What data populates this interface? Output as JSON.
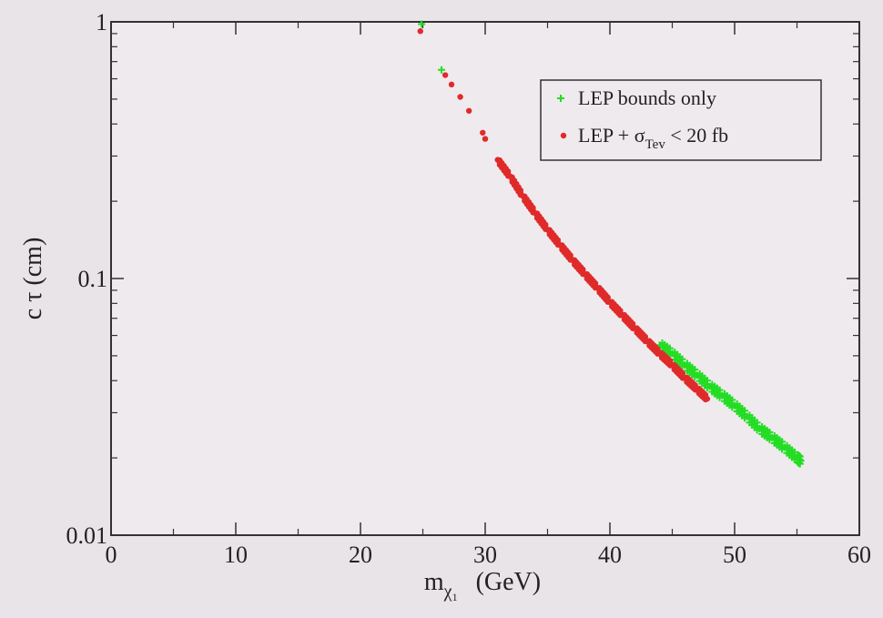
{
  "chart_data": {
    "type": "scatter",
    "title": "",
    "xlabel": {
      "main": "m",
      "sub": "χ",
      "subsub": "1",
      "unit": "(GeV)"
    },
    "ylabel": "c τ  (cm)",
    "xlim": [
      0,
      60
    ],
    "ylim": [
      0.01,
      1
    ],
    "yscale": "log",
    "xticks": [
      0,
      10,
      20,
      30,
      40,
      50,
      60
    ],
    "xtick_labels": [
      "0",
      "10",
      "20",
      "30",
      "40",
      "50",
      "60"
    ],
    "yticks": [
      0.01,
      0.1,
      1
    ],
    "ytick_labels": [
      "0.01",
      "0.1",
      "1"
    ],
    "grid": false,
    "legend": {
      "position": "top-right",
      "entries": [
        {
          "label": "LEP bounds only",
          "color": "#22dd22",
          "marker": "+"
        },
        {
          "label": "LEP + σ",
          "sub": "Tev",
          "suffix": " < 20 fb",
          "color": "#e02a2a",
          "marker": "x"
        }
      ]
    },
    "series": [
      {
        "name": "LEP bounds only",
        "color": "#22dd22",
        "points": [
          [
            24.9,
            0.98
          ],
          [
            26.5,
            0.65
          ],
          [
            44.0,
            0.055
          ],
          [
            45.0,
            0.051
          ],
          [
            46.0,
            0.046
          ],
          [
            47.0,
            0.042
          ],
          [
            48.0,
            0.038
          ],
          [
            49.0,
            0.035
          ],
          [
            50.0,
            0.032
          ],
          [
            51.0,
            0.029
          ],
          [
            52.0,
            0.026
          ],
          [
            53.0,
            0.024
          ],
          [
            54.0,
            0.022
          ],
          [
            55.0,
            0.02
          ],
          [
            55.3,
            0.0195
          ]
        ]
      },
      {
        "name": "LEP + σTev < 20 fb",
        "color": "#e02a2a",
        "points": [
          [
            24.8,
            0.92
          ],
          [
            26.8,
            0.62
          ],
          [
            27.3,
            0.57
          ],
          [
            28.0,
            0.51
          ],
          [
            28.7,
            0.45
          ],
          [
            29.8,
            0.37
          ],
          [
            30.0,
            0.35
          ],
          [
            31.0,
            0.29
          ],
          [
            32.0,
            0.25
          ],
          [
            33.0,
            0.21
          ],
          [
            34.0,
            0.18
          ],
          [
            35.0,
            0.155
          ],
          [
            36.0,
            0.135
          ],
          [
            37.0,
            0.118
          ],
          [
            38.0,
            0.104
          ],
          [
            39.0,
            0.092
          ],
          [
            40.0,
            0.081
          ],
          [
            41.0,
            0.072
          ],
          [
            42.0,
            0.064
          ],
          [
            43.0,
            0.057
          ],
          [
            44.0,
            0.051
          ],
          [
            45.0,
            0.046
          ],
          [
            46.0,
            0.041
          ],
          [
            47.0,
            0.037
          ],
          [
            47.8,
            0.034
          ]
        ]
      }
    ]
  }
}
